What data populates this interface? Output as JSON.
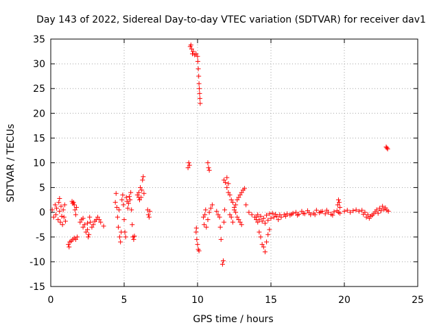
{
  "colors": {
    "series": "#ff0000",
    "frame": "#000000",
    "grid": "#a0a0a0"
  },
  "chart_data": {
    "type": "scatter",
    "title": "Day 143 of 2022, Sidereal Day-to-day VTEC variation (SDTVAR) for receiver dav1",
    "xlabel": "GPS time / hours",
    "ylabel": "SDTVAR / TECUs",
    "xlim": [
      0,
      25
    ],
    "ylim": [
      -15,
      35
    ],
    "xticks": [
      0,
      5,
      10,
      15,
      20,
      25
    ],
    "yticks": [
      -15,
      -10,
      -5,
      0,
      5,
      10,
      15,
      20,
      25,
      30,
      35
    ],
    "grid": true,
    "marker": "+",
    "series": [
      {
        "name": "SDTVAR",
        "points": [
          [
            0.1,
            0.5
          ],
          [
            0.2,
            -1
          ],
          [
            0.3,
            1.5
          ],
          [
            0.35,
            -0.5
          ],
          [
            0.4,
            0.8
          ],
          [
            0.5,
            -1.5
          ],
          [
            0.55,
            2.0
          ],
          [
            0.6,
            0.2
          ],
          [
            0.65,
            -2.0
          ],
          [
            0.7,
            1.2
          ],
          [
            0.75,
            -0.8
          ],
          [
            0.8,
            -2.5
          ],
          [
            0.85,
            0.5
          ],
          [
            0.9,
            -1.0
          ],
          [
            0.6,
            2.8
          ],
          [
            0.95,
            1.5
          ],
          [
            1.0,
            -1.8
          ],
          [
            1.2,
            -6.5
          ],
          [
            1.25,
            -7.0
          ],
          [
            1.3,
            -6.0
          ],
          [
            1.4,
            -5.8
          ],
          [
            1.5,
            -5.5
          ],
          [
            1.6,
            -5.2
          ],
          [
            1.7,
            -5.5
          ],
          [
            1.8,
            -5.0
          ],
          [
            1.45,
            2.2
          ],
          [
            1.5,
            1.8
          ],
          [
            1.55,
            2.0
          ],
          [
            1.6,
            1.5
          ],
          [
            1.65,
            0.5
          ],
          [
            1.7,
            -0.5
          ],
          [
            1.75,
            1.0
          ],
          [
            2.0,
            -2.0
          ],
          [
            2.1,
            -1.5
          ],
          [
            2.2,
            -3.0
          ],
          [
            2.3,
            -2.5
          ],
          [
            2.4,
            -4.0
          ],
          [
            2.5,
            -3.5
          ],
          [
            2.6,
            -4.5
          ],
          [
            2.7,
            -2.0
          ],
          [
            2.8,
            -3.0
          ],
          [
            2.9,
            -2.5
          ],
          [
            3.0,
            -1.8
          ],
          [
            3.1,
            -1.5
          ],
          [
            3.2,
            -1.0
          ],
          [
            3.3,
            -1.5
          ],
          [
            3.4,
            -2.0
          ],
          [
            3.6,
            -2.8
          ],
          [
            2.2,
            -1.2
          ],
          [
            2.5,
            -2.2
          ],
          [
            2.55,
            -5.0
          ],
          [
            2.65,
            -1.0
          ],
          [
            4.4,
            2.0
          ],
          [
            4.45,
            3.8
          ],
          [
            4.5,
            1.0
          ],
          [
            4.55,
            -1.0
          ],
          [
            4.6,
            -3.0
          ],
          [
            4.65,
            0.5
          ],
          [
            4.7,
            -5.0
          ],
          [
            4.75,
            -6.0
          ],
          [
            4.8,
            -4.0
          ],
          [
            4.85,
            2.5
          ],
          [
            4.9,
            3.5
          ],
          [
            4.95,
            1.5
          ],
          [
            5.0,
            -1.5
          ],
          [
            5.05,
            -4.0
          ],
          [
            5.1,
            -5.0
          ],
          [
            5.15,
            3.0
          ],
          [
            5.2,
            2.2
          ],
          [
            5.25,
            0.8
          ],
          [
            5.3,
            1.8
          ],
          [
            5.35,
            3.2
          ],
          [
            5.4,
            2.5
          ],
          [
            5.45,
            4.0
          ],
          [
            5.5,
            0.5
          ],
          [
            5.55,
            -2.5
          ],
          [
            5.6,
            -5.0
          ],
          [
            5.65,
            -5.5
          ],
          [
            5.7,
            -4.8
          ],
          [
            5.9,
            3.5
          ],
          [
            6.0,
            4.0
          ],
          [
            6.05,
            2.5
          ],
          [
            6.1,
            5.0
          ],
          [
            6.15,
            3.0
          ],
          [
            6.2,
            4.5
          ],
          [
            6.25,
            6.5
          ],
          [
            6.3,
            7.2
          ],
          [
            6.35,
            3.8
          ],
          [
            6.0,
            3.0
          ],
          [
            6.6,
            0.5
          ],
          [
            6.65,
            -0.5
          ],
          [
            6.7,
            -1.0
          ],
          [
            6.75,
            0.2
          ],
          [
            9.35,
            9.0
          ],
          [
            9.4,
            10.0
          ],
          [
            9.45,
            9.5
          ],
          [
            9.5,
            33.5
          ],
          [
            9.55,
            33.8
          ],
          [
            9.6,
            33.0
          ],
          [
            9.65,
            32.0
          ],
          [
            9.7,
            32.5
          ],
          [
            9.8,
            31.8
          ],
          [
            9.9,
            32.0
          ],
          [
            10.0,
            31.5
          ],
          [
            10.02,
            30.5
          ],
          [
            10.05,
            29.0
          ],
          [
            10.08,
            27.5
          ],
          [
            10.1,
            26.0
          ],
          [
            10.12,
            25.0
          ],
          [
            10.14,
            24.0
          ],
          [
            10.16,
            23.0
          ],
          [
            10.18,
            22.0
          ],
          [
            9.9,
            -4.0
          ],
          [
            9.95,
            -5.5
          ],
          [
            10.0,
            -6.5
          ],
          [
            10.05,
            -7.5
          ],
          [
            10.1,
            -7.8
          ],
          [
            9.92,
            -3.2
          ],
          [
            10.4,
            -1.0
          ],
          [
            10.45,
            -2.5
          ],
          [
            10.5,
            -0.5
          ],
          [
            10.55,
            0.5
          ],
          [
            10.6,
            -3.0
          ],
          [
            10.7,
            -1.5
          ],
          [
            10.8,
            0.0
          ],
          [
            10.9,
            0.8
          ],
          [
            11.0,
            1.5
          ],
          [
            10.7,
            10.0
          ],
          [
            10.75,
            9.0
          ],
          [
            10.8,
            8.5
          ],
          [
            11.3,
            0.2
          ],
          [
            11.4,
            -0.5
          ],
          [
            11.5,
            -1.0
          ],
          [
            11.55,
            -3.0
          ],
          [
            11.6,
            -5.5
          ],
          [
            11.7,
            -10.5
          ],
          [
            11.75,
            -9.8
          ],
          [
            11.8,
            -2.0
          ],
          [
            11.85,
            0.5
          ],
          [
            11.8,
            6.5
          ],
          [
            11.9,
            6.0
          ],
          [
            12.0,
            5.0
          ],
          [
            12.1,
            4.0
          ],
          [
            12.2,
            3.5
          ],
          [
            12.3,
            2.5
          ],
          [
            12.4,
            2.0
          ],
          [
            12.5,
            1.0
          ],
          [
            12.6,
            0.0
          ],
          [
            12.7,
            -1.0
          ],
          [
            12.8,
            -1.5
          ],
          [
            12.9,
            -2.0
          ],
          [
            13.0,
            -2.5
          ],
          [
            12.0,
            7.0
          ],
          [
            12.1,
            5.8
          ],
          [
            12.2,
            -0.5
          ],
          [
            12.3,
            -1.0
          ],
          [
            12.4,
            -2.0
          ],
          [
            12.5,
            0.5
          ],
          [
            12.6,
            1.5
          ],
          [
            12.7,
            2.5
          ],
          [
            12.8,
            3.0
          ],
          [
            12.9,
            3.5
          ],
          [
            13.0,
            4.0
          ],
          [
            13.1,
            4.5
          ],
          [
            13.2,
            4.8
          ],
          [
            13.3,
            1.5
          ],
          [
            13.5,
            0.0
          ],
          [
            13.7,
            -0.5
          ],
          [
            13.9,
            -1.0
          ],
          [
            14.0,
            -1.5
          ],
          [
            14.1,
            -2.0
          ],
          [
            14.2,
            -4.0
          ],
          [
            14.3,
            -5.0
          ],
          [
            14.4,
            -6.5
          ],
          [
            14.5,
            -7.0
          ],
          [
            14.6,
            -8.0
          ],
          [
            14.7,
            -6.0
          ],
          [
            14.8,
            -4.5
          ],
          [
            14.9,
            -3.5
          ],
          [
            14.0,
            -1.0
          ],
          [
            14.2,
            -1.5
          ],
          [
            14.4,
            -1.8
          ],
          [
            14.6,
            -2.2
          ],
          [
            14.8,
            -1.6
          ],
          [
            15.0,
            -1.2
          ],
          [
            15.2,
            -1.0
          ],
          [
            15.4,
            -0.8
          ],
          [
            15.6,
            -0.5
          ],
          [
            14.1,
            -0.5
          ],
          [
            14.3,
            -0.8
          ],
          [
            14.5,
            -1.2
          ],
          [
            14.7,
            -0.6
          ],
          [
            14.9,
            -0.3
          ],
          [
            15.1,
            -0.2
          ],
          [
            15.3,
            -0.4
          ],
          [
            15.5,
            -1.5
          ],
          [
            15.7,
            -1.0
          ],
          [
            15.9,
            -0.5
          ],
          [
            16.1,
            -0.3
          ],
          [
            16.3,
            -0.6
          ],
          [
            16.5,
            -0.2
          ],
          [
            16.7,
            0.0
          ],
          [
            16.9,
            -0.4
          ],
          [
            17.1,
            0.2
          ],
          [
            17.3,
            -0.3
          ],
          [
            17.5,
            0.3
          ],
          [
            17.7,
            -0.5
          ],
          [
            17.9,
            -0.2
          ],
          [
            18.1,
            0.4
          ],
          [
            18.3,
            -0.1
          ],
          [
            18.5,
            0.2
          ],
          [
            18.7,
            -0.3
          ],
          [
            18.9,
            0.0
          ],
          [
            19.1,
            -0.4
          ],
          [
            19.3,
            0.1
          ],
          [
            19.5,
            0.3
          ],
          [
            19.7,
            -0.2
          ],
          [
            16.0,
            -0.8
          ],
          [
            16.4,
            -0.4
          ],
          [
            16.8,
            -0.6
          ],
          [
            17.2,
            -0.2
          ],
          [
            17.6,
            -0.1
          ],
          [
            18.0,
            -0.5
          ],
          [
            18.4,
            0.1
          ],
          [
            18.8,
            0.4
          ],
          [
            19.2,
            -0.6
          ],
          [
            19.6,
            0.0
          ],
          [
            19.55,
            1.5
          ],
          [
            19.6,
            2.5
          ],
          [
            19.65,
            2.0
          ],
          [
            19.7,
            1.0
          ],
          [
            20.0,
            0.2
          ],
          [
            20.2,
            0.4
          ],
          [
            20.4,
            0.0
          ],
          [
            20.6,
            0.3
          ],
          [
            20.8,
            0.5
          ],
          [
            21.0,
            0.2
          ],
          [
            21.2,
            0.4
          ],
          [
            21.4,
            0.0
          ],
          [
            21.6,
            -0.5
          ],
          [
            21.8,
            -0.8
          ],
          [
            22.0,
            -0.3
          ],
          [
            22.2,
            0.5
          ],
          [
            22.4,
            0.8
          ],
          [
            22.6,
            1.2
          ],
          [
            22.8,
            0.9
          ],
          [
            23.0,
            0.2
          ],
          [
            21.3,
            -0.4
          ],
          [
            21.5,
            -1.0
          ],
          [
            21.7,
            -1.2
          ],
          [
            21.9,
            -0.6
          ],
          [
            22.1,
            0.1
          ],
          [
            22.3,
            -0.2
          ],
          [
            22.5,
            0.3
          ],
          [
            22.7,
            0.6
          ],
          [
            22.9,
            0.4
          ],
          [
            22.85,
            13.2
          ],
          [
            22.9,
            13.0
          ],
          [
            22.95,
            12.8
          ]
        ]
      }
    ]
  }
}
